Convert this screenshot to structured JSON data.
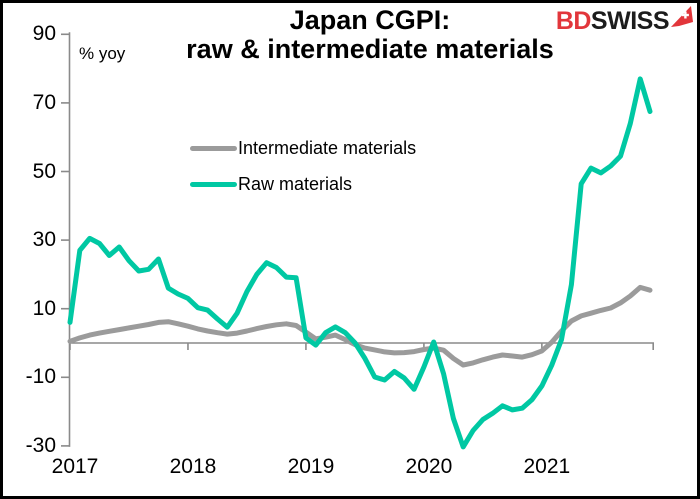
{
  "header": {
    "title_line1": "Japan CGPI:",
    "title_line2": "raw & intermediate materials",
    "logo": {
      "part1": "BD",
      "part2": "SWISS",
      "part1_color": "#e2363b",
      "part2_color": "#1c1c1c",
      "flag_color": "#e2363b",
      "flag_icon": "swiss-flag-arrow"
    }
  },
  "chart_data": {
    "type": "line",
    "title": "Japan CGPI: raw & intermediate materials",
    "unit_label": "% yoy",
    "ylim": [
      -30,
      90
    ],
    "y_ticks": [
      90,
      70,
      50,
      30,
      10,
      -10,
      -30
    ],
    "x_tick_labels": [
      "2017",
      "2018",
      "2019",
      "2020",
      "2021"
    ],
    "x_start": "2017-01",
    "x_end": "2021-12",
    "grid": false,
    "legend_position": "inside-upper-left",
    "axis_color": "#8a8a8a",
    "legend": [
      {
        "name": "Intermediate materials",
        "color": "#9b9b9b"
      },
      {
        "name": "Raw materials",
        "color": "#00c8a3"
      }
    ],
    "series": [
      {
        "name": "Intermediate materials",
        "color": "#9b9b9b",
        "values": [
          0.5,
          1.5,
          2.3,
          2.9,
          3.4,
          3.9,
          4.4,
          4.9,
          5.4,
          6.0,
          6.2,
          5.6,
          4.9,
          4.1,
          3.5,
          3.0,
          2.6,
          2.9,
          3.5,
          4.2,
          4.8,
          5.3,
          5.6,
          5.1,
          3.2,
          1.2,
          1.7,
          2.3,
          1.0,
          -0.5,
          -1.5,
          -2.0,
          -2.6,
          -2.9,
          -2.8,
          -2.5,
          -1.9,
          -1.5,
          -2.1,
          -4.5,
          -6.4,
          -5.8,
          -4.9,
          -4.1,
          -3.5,
          -3.8,
          -4.1,
          -3.4,
          -2.3,
          0.2,
          3.5,
          6.4,
          7.9,
          8.7,
          9.5,
          10.2,
          11.7,
          13.7,
          16.2,
          15.4
        ]
      },
      {
        "name": "Raw materials",
        "color": "#00c8a3",
        "values": [
          6,
          27,
          30.5,
          29,
          25.5,
          28,
          24,
          21,
          21.5,
          24.5,
          16,
          14.3,
          13,
          10.3,
          9.6,
          7,
          4.6,
          8.7,
          15,
          20,
          23.4,
          22,
          19.2,
          19,
          1.5,
          -0.6,
          3,
          4.7,
          3,
          0,
          -4.5,
          -9.9,
          -10.8,
          -8.3,
          -10.2,
          -13.5,
          -7,
          0.3,
          -9,
          -22,
          -30.3,
          -25.5,
          -22.3,
          -20.5,
          -18.3,
          -19.5,
          -19,
          -16.5,
          -12.5,
          -6.5,
          1,
          17,
          46.4,
          51,
          49.6,
          51.6,
          54.5,
          64,
          77,
          67.5
        ]
      }
    ]
  }
}
